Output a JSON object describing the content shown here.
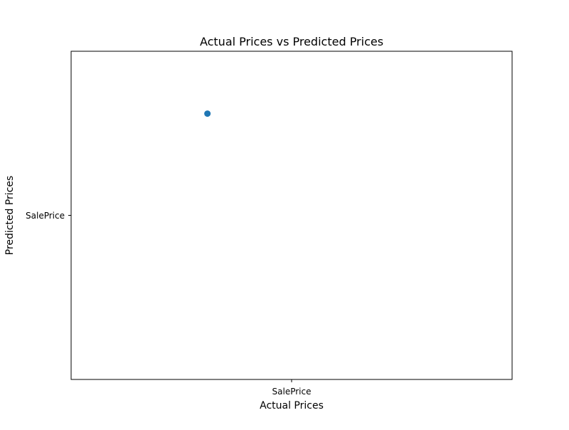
{
  "chart_data": {
    "type": "scatter",
    "title": "Actual Prices vs Predicted Prices",
    "xlabel": "Actual Prices",
    "ylabel": "Predicted Prices",
    "x_categories": [
      "SalePrice"
    ],
    "y_categories": [
      "SalePrice"
    ],
    "points": [
      {
        "x": -0.21,
        "y": 0.31
      }
    ],
    "xlim": [
      -0.55,
      0.55
    ],
    "ylim": [
      -0.5,
      0.5
    ],
    "grid": false,
    "legend": "none",
    "marker_color": "#1f77b4"
  }
}
